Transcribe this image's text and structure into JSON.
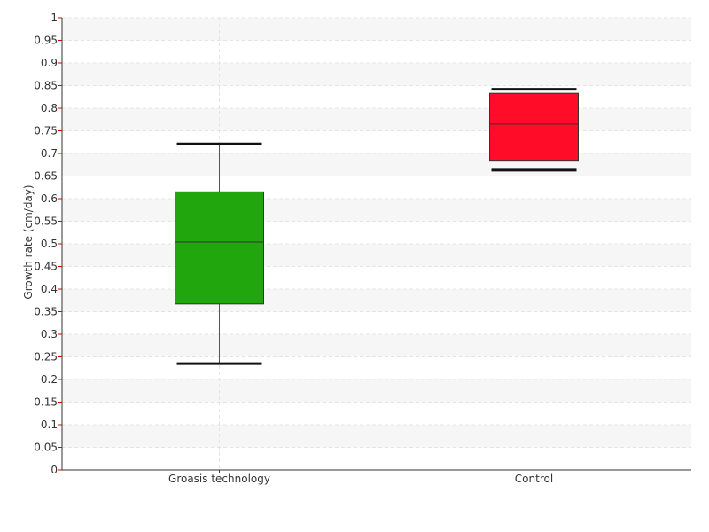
{
  "chart_data": {
    "type": "box",
    "title": "",
    "xlabel": "",
    "ylabel": "Growth rate (cm/day)",
    "ylim": [
      0,
      1
    ],
    "yticks": [
      "0",
      "0.05",
      "0.1",
      "0.15",
      "0.2",
      "0.25",
      "0.3",
      "0.35",
      "0.4",
      "0.45",
      "0.5",
      "0.55",
      "0.6",
      "0.65",
      "0.7",
      "0.75",
      "0.8",
      "0.85",
      "0.9",
      "0.95",
      "1"
    ],
    "grid": true,
    "categories": [
      "Groasis technology",
      "Control"
    ],
    "boxes": [
      {
        "category": "Groasis technology",
        "min": 0.235,
        "q1": 0.367,
        "median": 0.504,
        "q3": 0.615,
        "max": 0.721,
        "color": "#22a60e"
      },
      {
        "category": "Control",
        "min": 0.663,
        "q1": 0.683,
        "median": 0.765,
        "q3": 0.833,
        "max": 0.842,
        "color": "#ff0c28"
      }
    ]
  }
}
